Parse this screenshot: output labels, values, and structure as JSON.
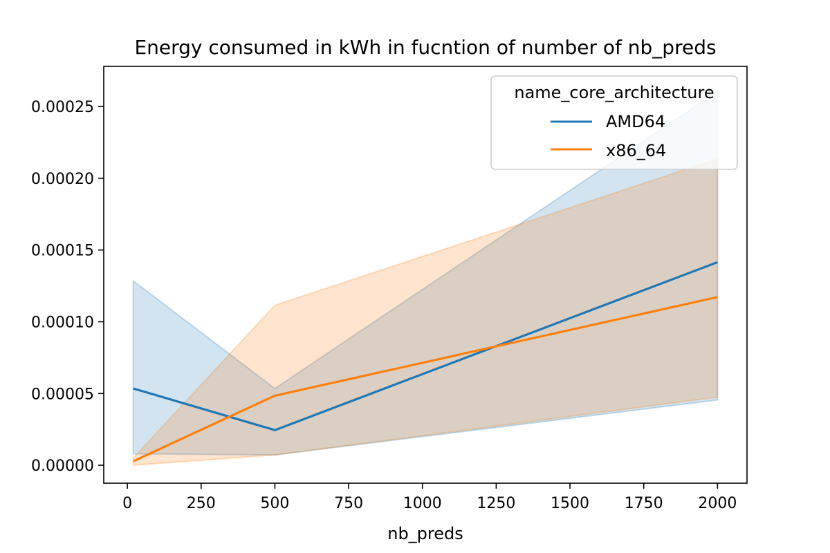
{
  "chart_data": {
    "type": "line",
    "title": "Energy consumed in kWh in fucntion of number of nb_preds",
    "xlabel": "nb_preds",
    "ylabel": "",
    "xlim": [
      -80,
      2100
    ],
    "ylim": [
      -1.25e-05,
      0.000278
    ],
    "xticks": [
      0,
      250,
      500,
      750,
      1000,
      1250,
      1500,
      1750,
      2000
    ],
    "yticks": [
      0.0,
      5e-05,
      0.0001,
      0.00015,
      0.0002,
      0.00025
    ],
    "ytick_labels": [
      "0.00000",
      "0.00005",
      "0.00010",
      "0.00015",
      "0.00020",
      "0.00025"
    ],
    "x": [
      20,
      500,
      2000
    ],
    "legend": {
      "title": "name_core_architecture",
      "placement": "top-right"
    },
    "grid": false,
    "series": [
      {
        "name": "AMD64",
        "color": "#1f77b4",
        "values": [
          5.35e-05,
          2.45e-05,
          0.0001415
        ],
        "ci_upper": [
          0.0001285,
          5.35e-05,
          0.0002605
        ],
        "ci_lower": [
          8e-06,
          7.2e-06,
          4.55e-05
        ]
      },
      {
        "name": "x86_64",
        "color": "#ff7f0e",
        "values": [
          2.8e-06,
          4.85e-05,
          0.0001172
        ],
        "ci_upper": [
          5e-06,
          0.0001115,
          0.0002135
        ],
        "ci_lower": [
          0.0,
          7.2e-06,
          4.75e-05
        ]
      }
    ]
  }
}
